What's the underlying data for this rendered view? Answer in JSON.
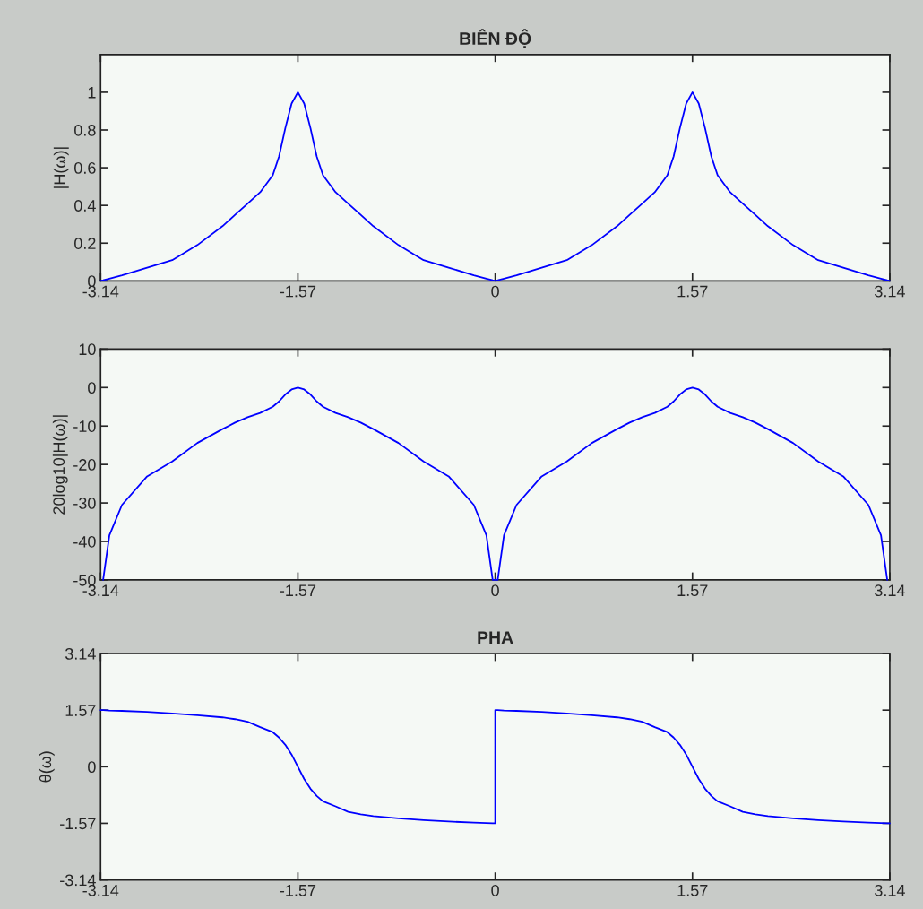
{
  "chart_data": [
    {
      "type": "line",
      "title": "BIÊN ĐỘ",
      "ylabel": "|H(ω)|",
      "x": [
        -3.14,
        -3.12,
        -3.07,
        -2.97,
        -2.77,
        -2.57,
        -2.37,
        -2.17,
        -2.07,
        -1.97,
        -1.87,
        -1.77,
        -1.72,
        -1.67,
        -1.62,
        -1.57,
        -1.52,
        -1.47,
        -1.42,
        -1.37,
        -1.27,
        -1.17,
        -1.07,
        -0.97,
        -0.77,
        -0.57,
        -0.37,
        -0.17,
        -0.07,
        -0.02,
        0,
        0.02,
        0.07,
        0.17,
        0.37,
        0.57,
        0.77,
        0.97,
        1.07,
        1.17,
        1.27,
        1.37,
        1.42,
        1.47,
        1.52,
        1.57,
        1.62,
        1.67,
        1.72,
        1.77,
        1.87,
        1.97,
        2.07,
        2.17,
        2.37,
        2.57,
        2.77,
        2.97,
        3.07,
        3.12,
        3.14
      ],
      "series": [
        {
          "color": "#0000ff",
          "values": [
            0,
            0.003,
            0.012,
            0.03,
            0.07,
            0.11,
            0.19,
            0.29,
            0.35,
            0.41,
            0.47,
            0.56,
            0.66,
            0.81,
            0.94,
            1,
            0.94,
            0.81,
            0.66,
            0.56,
            0.47,
            0.41,
            0.35,
            0.29,
            0.19,
            0.11,
            0.07,
            0.03,
            0.012,
            0.003,
            0,
            0.003,
            0.012,
            0.03,
            0.07,
            0.11,
            0.19,
            0.29,
            0.35,
            0.41,
            0.47,
            0.56,
            0.66,
            0.81,
            0.94,
            1,
            0.94,
            0.81,
            0.66,
            0.56,
            0.47,
            0.41,
            0.35,
            0.29,
            0.19,
            0.11,
            0.07,
            0.03,
            0.012,
            0.003,
            0
          ]
        }
      ],
      "xlim": [
        -3.14,
        3.14
      ],
      "xticks": [
        -3.14,
        -1.57,
        0,
        1.57,
        3.14
      ],
      "ylim": [
        0,
        1.2
      ],
      "yticks": [
        0,
        0.2,
        0.4,
        0.6,
        0.8,
        1
      ]
    },
    {
      "type": "line",
      "ylabel": "20log10|H(ω)|",
      "x": [
        -3.12,
        -3.07,
        -2.97,
        -2.77,
        -2.57,
        -2.37,
        -2.17,
        -2.07,
        -1.97,
        -1.87,
        -1.77,
        -1.72,
        -1.67,
        -1.62,
        -1.57,
        -1.52,
        -1.47,
        -1.42,
        -1.37,
        -1.27,
        -1.17,
        -1.07,
        -0.97,
        -0.77,
        -0.57,
        -0.37,
        -0.17,
        -0.07,
        -0.02,
        0.02,
        0.07,
        0.17,
        0.37,
        0.57,
        0.77,
        0.97,
        1.07,
        1.17,
        1.27,
        1.37,
        1.42,
        1.47,
        1.52,
        1.57,
        1.62,
        1.67,
        1.72,
        1.77,
        1.87,
        1.97,
        2.07,
        2.17,
        2.37,
        2.57,
        2.77,
        2.97,
        3.07,
        3.12
      ],
      "series": [
        {
          "color": "#0000ff",
          "values": [
            -50,
            -38.4,
            -30.5,
            -23.1,
            -19.2,
            -14.4,
            -10.8,
            -9.1,
            -7.7,
            -6.6,
            -5.0,
            -3.6,
            -1.8,
            -0.5,
            0,
            -0.5,
            -1.8,
            -3.6,
            -5.0,
            -6.6,
            -7.7,
            -9.1,
            -10.8,
            -14.4,
            -19.2,
            -23.1,
            -30.5,
            -38.4,
            -50,
            -50,
            -38.4,
            -30.5,
            -23.1,
            -19.2,
            -14.4,
            -10.8,
            -9.1,
            -7.7,
            -6.6,
            -5.0,
            -3.6,
            -1.8,
            -0.5,
            0,
            -0.5,
            -1.8,
            -3.6,
            -5.0,
            -6.6,
            -7.7,
            -9.1,
            -10.8,
            -14.4,
            -19.2,
            -23.1,
            -30.5,
            -38.4,
            -50
          ]
        }
      ],
      "xlim": [
        -3.14,
        3.14
      ],
      "xticks": [
        -3.14,
        -1.57,
        0,
        1.57,
        3.14
      ],
      "ylim": [
        -50,
        10
      ],
      "yticks": [
        -50,
        -40,
        -30,
        -20,
        -10,
        0,
        10
      ]
    },
    {
      "type": "line",
      "title": "PHA",
      "ylabel": "θ(ω)",
      "x": [
        -3.14,
        -3.12,
        -3.07,
        -2.97,
        -2.77,
        -2.57,
        -2.37,
        -2.17,
        -2.07,
        -1.97,
        -1.87,
        -1.77,
        -1.72,
        -1.67,
        -1.62,
        -1.57,
        -1.52,
        -1.47,
        -1.42,
        -1.37,
        -1.27,
        -1.17,
        -1.07,
        -0.97,
        -0.77,
        -0.57,
        -0.37,
        -0.17,
        -0.07,
        -0.02,
        0,
        0,
        0.02,
        0.07,
        0.17,
        0.37,
        0.57,
        0.77,
        0.97,
        1.07,
        1.17,
        1.27,
        1.37,
        1.42,
        1.47,
        1.52,
        1.57,
        1.62,
        1.67,
        1.72,
        1.77,
        1.87,
        1.97,
        2.07,
        2.17,
        2.37,
        2.57,
        2.77,
        2.97,
        3.07,
        3.12,
        3.14
      ],
      "series": [
        {
          "color": "#0000ff",
          "values": [
            1.57,
            1.57,
            1.56,
            1.55,
            1.52,
            1.48,
            1.43,
            1.37,
            1.32,
            1.25,
            1.1,
            0.96,
            0.81,
            0.61,
            0.34,
            0,
            -0.34,
            -0.61,
            -0.81,
            -0.96,
            -1.1,
            -1.25,
            -1.32,
            -1.37,
            -1.43,
            -1.48,
            -1.52,
            -1.55,
            -1.56,
            -1.57,
            -1.57,
            1.57,
            1.57,
            1.56,
            1.55,
            1.52,
            1.48,
            1.43,
            1.37,
            1.32,
            1.25,
            1.1,
            0.96,
            0.81,
            0.61,
            0.34,
            0,
            -0.34,
            -0.61,
            -0.81,
            -0.96,
            -1.1,
            -1.25,
            -1.32,
            -1.37,
            -1.43,
            -1.48,
            -1.52,
            -1.55,
            -1.56,
            -1.57,
            -1.57
          ]
        }
      ],
      "xlim": [
        -3.14,
        3.14
      ],
      "xticks": [
        -3.14,
        -1.57,
        0,
        1.57,
        3.14
      ],
      "ylim": [
        -3.14,
        3.14
      ],
      "yticks": [
        -3.14,
        -1.57,
        0,
        1.57,
        3.14
      ]
    }
  ]
}
